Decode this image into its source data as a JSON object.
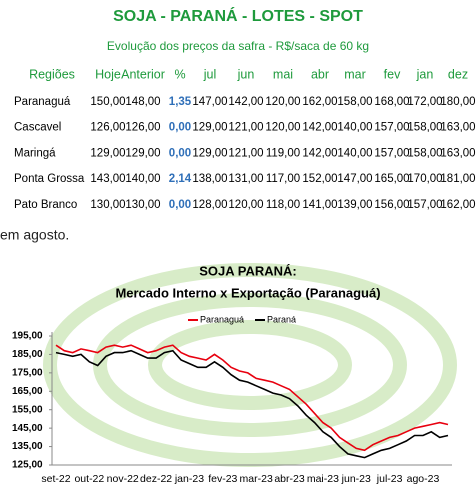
{
  "table": {
    "title": "SOJA - PARANÁ - LOTES - SPOT",
    "subtitle": "Evolução dos preços da safra - R$/saca de 60 kg",
    "headers": [
      "Regiões",
      "Hoje",
      "Anterior",
      "%",
      "jul",
      "jun",
      "mai",
      "abr",
      "mar",
      "fev",
      "jan",
      "dez"
    ],
    "rows": [
      [
        "Paranaguá",
        "150,00",
        "148,00",
        "1,35",
        "147,00",
        "142,00",
        "120,00",
        "162,00",
        "158,00",
        "168,00",
        "172,00",
        "180,00"
      ],
      [
        "Cascavel",
        "126,00",
        "126,00",
        "0,00",
        "129,00",
        "121,00",
        "120,00",
        "142,00",
        "140,00",
        "157,00",
        "158,00",
        "163,00"
      ],
      [
        "Maringá",
        "129,00",
        "129,00",
        "0,00",
        "129,00",
        "121,00",
        "119,00",
        "142,00",
        "140,00",
        "157,00",
        "158,00",
        "163,00"
      ],
      [
        "Ponta Grossa",
        "143,00",
        "140,00",
        "2,14",
        "138,00",
        "131,00",
        "117,00",
        "152,00",
        "147,00",
        "165,00",
        "170,00",
        "181,00"
      ],
      [
        "Pato Branco",
        "130,00",
        "130,00",
        "0,00",
        "128,00",
        "120,00",
        "118,00",
        "141,00",
        "139,00",
        "156,00",
        "157,00",
        "162,00"
      ]
    ]
  },
  "text": "em agosto.",
  "chart_data": {
    "type": "line",
    "title": "SOJA PARANÁ:",
    "subtitle": "Mercado Interno x Exportação (Paranaguá)",
    "categories": [
      "set-22",
      null,
      null,
      null,
      "out-22",
      null,
      null,
      null,
      "nov-22",
      null,
      null,
      null,
      "dez-22",
      null,
      null,
      null,
      "jan-23",
      null,
      null,
      null,
      "fev-23",
      null,
      null,
      null,
      "mar-23",
      null,
      null,
      null,
      "abr-23",
      null,
      null,
      null,
      "mai-23",
      null,
      null,
      null,
      "jun-23",
      null,
      null,
      null,
      "jul-23",
      null,
      null,
      null,
      "ago-23",
      null,
      null,
      null
    ],
    "series": [
      {
        "name": "Paranaguá",
        "color": "#e8000f",
        "values": [
          190,
          187,
          186,
          188,
          187,
          186,
          189,
          190,
          189,
          190,
          188,
          186,
          187,
          189,
          190,
          186,
          184,
          183,
          182,
          185,
          182,
          178,
          176,
          175,
          172,
          171,
          170,
          168,
          166,
          162,
          158,
          153,
          148,
          145,
          140,
          137,
          134,
          133,
          136,
          138,
          140,
          141,
          143,
          145,
          146,
          147,
          148,
          147
        ]
      },
      {
        "name": "Paraná",
        "color": "#000000",
        "values": [
          186,
          185,
          184,
          185,
          181,
          179,
          184,
          186,
          186,
          187,
          185,
          183,
          183,
          186,
          187,
          182,
          180,
          178,
          178,
          181,
          178,
          174,
          171,
          170,
          168,
          166,
          164,
          163,
          161,
          157,
          152,
          148,
          143,
          140,
          135,
          131,
          130,
          129,
          131,
          133,
          134,
          136,
          138,
          141,
          141,
          143,
          140,
          141
        ]
      }
    ],
    "ylim": [
      125,
      195
    ],
    "yticks": [
      {
        "value": 125,
        "label": "125,00"
      },
      {
        "value": 135,
        "label": "135,00"
      },
      {
        "value": 145,
        "label": "145,00"
      },
      {
        "value": 155,
        "label": "155,00"
      },
      {
        "value": 165,
        "label": "165,00"
      },
      {
        "value": 175,
        "label": "175,00"
      },
      {
        "value": 185,
        "label": "185,00"
      },
      {
        "value": 195,
        "label": "195,00"
      }
    ],
    "legend": "top"
  }
}
